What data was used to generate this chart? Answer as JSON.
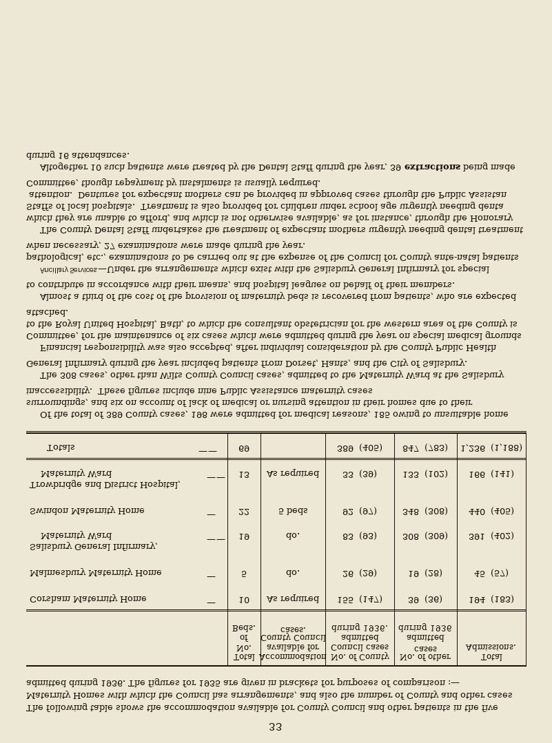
{
  "bg_color": "#ede8d5",
  "text_color": "#1a1008",
  "page_number": "33",
  "intro_text": "The following table shows the accommodation available for County Council and other patients in the five Maternity Homes with which the Council has arrangements, and also the number of County and other cases admitted during 1936.  The figures for 1935 are given in brackets for purposes of comparison :—",
  "col_headers": [
    [
      "Total",
      "No.",
      "of",
      "Beds."
    ],
    [
      "Accommodation",
      "available for",
      "County Council",
      "cases."
    ],
    [
      "No. of County",
      "Council cases",
      "admitted",
      "during 1936."
    ],
    [
      "No. of other",
      "cases",
      "admitted",
      "during 1936"
    ],
    [
      "Total",
      "Admissions."
    ]
  ],
  "rows": [
    {
      "name": "Corsham Maternity Home",
      "name2": null,
      "dash": true,
      "beds": "10",
      "accom": "As required",
      "county": "155",
      "county_br": "(147)",
      "other": "39",
      "other_br": "(36)",
      "total": "194",
      "total_br": "(183)"
    },
    {
      "name": "Malmesbury Maternity Home",
      "name2": null,
      "dash": true,
      "beds": "5",
      "accom": "do.",
      "county": "26",
      "county_br": "(29)",
      "other": "19",
      "other_br": "(28)",
      "total": "45",
      "total_br": "(57)"
    },
    {
      "name": "Salisbury General Infirmary,",
      "name2": "    Maternity Ward",
      "dash": true,
      "beds": "19",
      "accom": "do.",
      "county": "83",
      "county_br": "(93)",
      "other": "308",
      "other_br": "(309)",
      "total": "391",
      "total_br": "(402)"
    },
    {
      "name": "Swindon Maternity Home",
      "name2": null,
      "dash": true,
      "beds": "22",
      "accom": "5 beds",
      "county": "92",
      "county_br": "(97)",
      "other": "348",
      "other_br": "(308)",
      "total": "440",
      "total_br": "(405)"
    },
    {
      "name": "Trowbridge and District Hospital,",
      "name2": "    Maternity Ward",
      "dash": true,
      "beds": "13",
      "accom": "As required",
      "county": "33",
      "county_br": "(39)",
      "other": "133",
      "other_br": "(102)",
      "total": "166",
      "total_br": "(141)"
    }
  ],
  "totals_row": {
    "name": "Totals",
    "beds": "69",
    "county": "389",
    "county_br": "(405)",
    "other": "847",
    "other_br": "(783)",
    "total": "1,236",
    "total_br": "(1,188)"
  },
  "paragraphs": [
    {
      "indent": true,
      "parts": [
        [
          "normal",
          "Of the total of 389 County cases, 198 were admitted for medical reasons, 185 owing to unsuitable home surroundings, and six on account of lack of medical or nursing attention in their homes due to their inaccessibility.  These figures include nine Public Assistance maternity cases."
        ]
      ]
    },
    {
      "indent": true,
      "parts": [
        [
          "normal",
          "The 308 cases, other than Wilts County Council cases, admitted to the Maternity Ward at the Salisbury General Infirmary during the year included patients from Dorset, Hants, and the City of Salisbury."
        ]
      ]
    },
    {
      "indent": true,
      "parts": [
        [
          "normal",
          "Financial responsibility was also accepted, after individual consideration by the County Public Health Committee, for the maintenance of six cases which were admitted during the year on special medical grounds to the Royal United Hospital, Bath, to which the consultant obstetrician for the western area of the County is attached."
        ]
      ]
    },
    {
      "indent": true,
      "parts": [
        [
          "normal",
          "Almost a third of the cost of the provision of maternity beds is recovered from patients, who are expected to contribute in accordance with their means, and hospital leagues on behalf of their members."
        ]
      ]
    },
    {
      "indent": true,
      "parts": [
        [
          "italic",
          "Ancillary Services."
        ],
        [
          "normal",
          "—Under the arrangements which exist with the Salisbury General Infirmary for special pathological, etc., examinations to be carried out at the expense of the Council for County ante-natal patients when necessary, 27 examinations were made during the year."
        ]
      ]
    },
    {
      "indent": true,
      "parts": [
        [
          "normal",
          "The County Dental Staff undertakes the treatment of expectant mothers urgently needing dental treatment which they are unable to afford, and which is not otherwise available, as for instance, through the Honorary Staffs of local hospitals.  Treatment is also provided for children under school age urgently needing dental attention.  Dentures for expectant mothers can be provided in approved cases through the Public Assistance Committee, though repayment by instalments is usually required."
        ]
      ]
    },
    {
      "indent": true,
      "parts": [
        [
          "normal",
          "Altogether 10 such patients were treated by the Dental Staff during the year, 39 "
        ],
        [
          "bold",
          "extractions"
        ],
        [
          "normal",
          " being made during 16 attendances."
        ]
      ]
    }
  ]
}
